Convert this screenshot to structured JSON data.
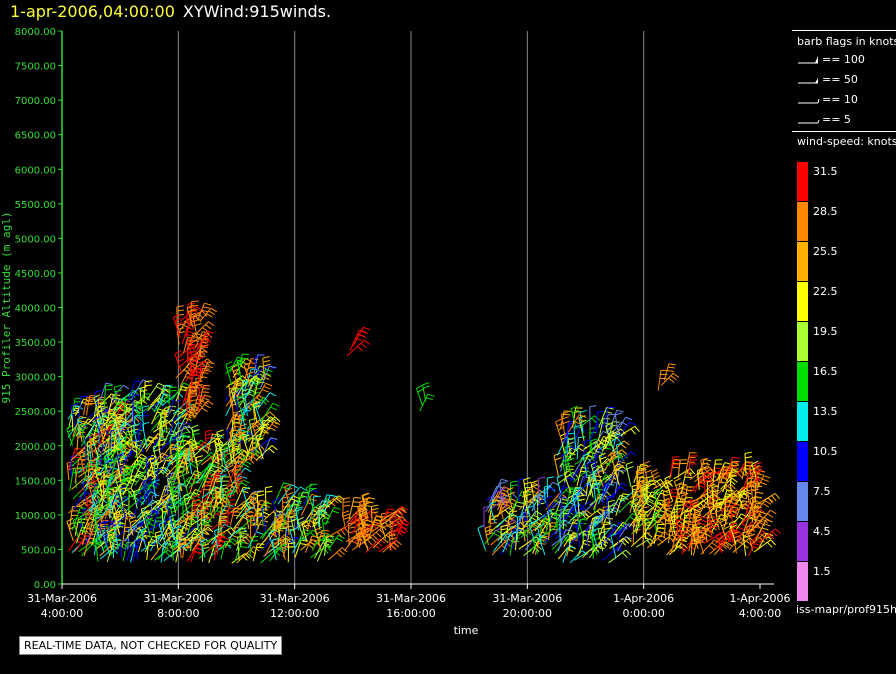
{
  "header": {
    "date": "1-apr-2006,04:00:00",
    "name": "XYWind:915winds."
  },
  "note": "REAL-TIME DATA, NOT CHECKED FOR QUALITY",
  "source_label": "iss-mapr/prof915h",
  "colors": {
    "axis": "#33dd33",
    "gridline": "#888888",
    "title_date": "#ffff33"
  },
  "barb_legend": {
    "title": "barb flags in knots",
    "items": [
      {
        "label": "== 100"
      },
      {
        "label": "== 50"
      },
      {
        "label": "== 10"
      },
      {
        "label": "== 5"
      }
    ]
  },
  "speed_legend": {
    "title": "wind-speed: knots",
    "items": [
      {
        "label": "31.5",
        "color": "#ff0000"
      },
      {
        "label": "28.5",
        "color": "#ff8800"
      },
      {
        "label": "25.5",
        "color": "#ffb000"
      },
      {
        "label": "22.5",
        "color": "#ffff00"
      },
      {
        "label": "19.5",
        "color": "#aaff33"
      },
      {
        "label": "16.5",
        "color": "#00dd00"
      },
      {
        "label": "13.5",
        "color": "#00eeee"
      },
      {
        "label": "10.5",
        "color": "#0000ff"
      },
      {
        "label": "7.5",
        "color": "#6688ee"
      },
      {
        "label": "4.5",
        "color": "#9933dd"
      },
      {
        "label": "1.5",
        "color": "#ee88ee"
      }
    ]
  },
  "chart_data": {
    "type": "scatter",
    "ylabel": "915 Profiler Altitude (m agl)",
    "xlabel": "time",
    "ylim": [
      0,
      8000
    ],
    "yticks": [
      "0.00",
      "500.00",
      "1000.00",
      "1500.00",
      "2000.00",
      "2500.00",
      "3000.00",
      "3500.00",
      "4000.00",
      "4500.00",
      "5000.00",
      "5500.00",
      "6000.00",
      "6500.00",
      "7000.00",
      "7500.00",
      "8000.00"
    ],
    "xticks": [
      {
        "date": "31-Mar-2006",
        "time": "4:00:00"
      },
      {
        "date": "31-Mar-2006",
        "time": "8:00:00"
      },
      {
        "date": "31-Mar-2006",
        "time": "12:00:00"
      },
      {
        "date": "31-Mar-2006",
        "time": "16:00:00"
      },
      {
        "date": "31-Mar-2006",
        "time": "20:00:00"
      },
      {
        "date": "1-Apr-2006",
        "time": "0:00:00"
      },
      {
        "date": "1-Apr-2006",
        "time": "4:00:00"
      }
    ],
    "x_unit": "hours since 31-Mar-2006 4:00:00",
    "xlim": [
      0,
      24
    ],
    "grid": "vertical",
    "clusters": [
      {
        "x": [
          0.2,
          2.0
        ],
        "y": [
          400,
          2500
        ],
        "speed": [
          10,
          32
        ]
      },
      {
        "x": [
          1.2,
          4.0
        ],
        "y": [
          300,
          2700
        ],
        "speed": [
          8,
          25
        ]
      },
      {
        "x": [
          3.8,
          6.2
        ],
        "y": [
          300,
          2000
        ],
        "speed": [
          12,
          32
        ]
      },
      {
        "x": [
          3.9,
          4.8
        ],
        "y": [
          2300,
          3850
        ],
        "speed": [
          27,
          33
        ]
      },
      {
        "x": [
          5.6,
          7.0
        ],
        "y": [
          1700,
          3100
        ],
        "speed": [
          8,
          30
        ]
      },
      {
        "x": [
          6.4,
          9.2
        ],
        "y": [
          300,
          1200
        ],
        "speed": [
          8,
          30
        ]
      },
      {
        "x": [
          9.6,
          11.5
        ],
        "y": [
          450,
          1000
        ],
        "speed": [
          25,
          32
        ]
      },
      {
        "x": [
          14.5,
          17.0
        ],
        "y": [
          400,
          1300
        ],
        "speed": [
          5,
          30
        ]
      },
      {
        "x": [
          17.0,
          19.2
        ],
        "y": [
          300,
          2300
        ],
        "speed": [
          6,
          25
        ]
      },
      {
        "x": [
          19.5,
          20.5
        ],
        "y": [
          500,
          1500
        ],
        "speed": [
          17,
          30
        ]
      },
      {
        "x": [
          20.7,
          24.0
        ],
        "y": [
          400,
          1600
        ],
        "speed": [
          22,
          33
        ]
      }
    ],
    "isolated": [
      {
        "x": 9.8,
        "y": 3300,
        "speed": 31
      },
      {
        "x": 12.3,
        "y": 2500,
        "speed": 17
      },
      {
        "x": 20.5,
        "y": 2800,
        "speed": 28
      },
      {
        "x": 17.2,
        "y": 2050,
        "speed": 27
      }
    ]
  }
}
